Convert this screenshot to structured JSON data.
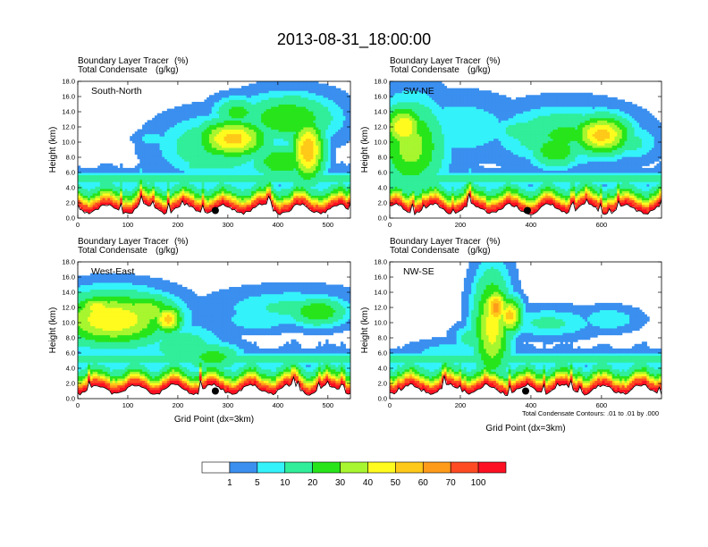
{
  "figure": {
    "title": "2013-08-31_18:00:00",
    "colors": {
      "background": "#ffffff",
      "terrain": "#c00018",
      "contour": "#000000",
      "point": "#000000"
    }
  },
  "chart_data": [
    {
      "type": "heatmap",
      "panel": "South-North",
      "label": "South-North",
      "header_left_1": "Boundary Layer Tracer",
      "header_right_1": "(%)",
      "header_left_2": "Total Condensate",
      "header_right_2": "(g/kg)",
      "ylabel": "Height (km)",
      "xlabel": "",
      "xlim": [
        0,
        545
      ],
      "ylim": [
        0,
        18
      ],
      "xticks": [
        0,
        100,
        200,
        300,
        400,
        500
      ],
      "yticks": [
        "0.0",
        "2.0",
        "4.0",
        "6.0",
        "8.0",
        "10.0",
        "12.0",
        "14.0",
        "16.0",
        "18.0"
      ],
      "marker_x": 275,
      "marker_y": 1.0,
      "cloud_blobs": [
        {
          "x": 150,
          "y": 10.5,
          "rx": 30,
          "ry": 0.9,
          "peak": 8
        },
        {
          "x": 280,
          "y": 9.5,
          "rx": 90,
          "ry": 3.2,
          "peak": 22
        },
        {
          "x": 310,
          "y": 10.5,
          "rx": 60,
          "ry": 2.2,
          "peak": 55
        },
        {
          "x": 320,
          "y": 14.0,
          "rx": 40,
          "ry": 1.6,
          "peak": 25
        },
        {
          "x": 420,
          "y": 13.2,
          "rx": 80,
          "ry": 2.6,
          "peak": 30
        },
        {
          "x": 440,
          "y": 15.5,
          "rx": 18,
          "ry": 1.0,
          "peak": 15
        },
        {
          "x": 460,
          "y": 9.0,
          "rx": 28,
          "ry": 3.5,
          "peak": 60
        },
        {
          "x": 410,
          "y": 7.5,
          "rx": 55,
          "ry": 2.0,
          "peak": 30
        },
        {
          "x": 240,
          "y": 7.0,
          "rx": 40,
          "ry": 1.2,
          "peak": 12
        }
      ],
      "terrain_seed": 3
    },
    {
      "type": "heatmap",
      "panel": "SW-NE",
      "label": "SW-NE",
      "header_left_1": "Boundary Layer Tracer",
      "header_right_1": "(%)",
      "header_left_2": "Total Condensate",
      "header_right_2": "(g/kg)",
      "ylabel": "Height (km)",
      "xlabel": "",
      "xlim": [
        0,
        770
      ],
      "ylim": [
        0,
        18
      ],
      "xticks": [
        0,
        200,
        400,
        600
      ],
      "yticks": [
        "0.0",
        "2.0",
        "4.0",
        "6.0",
        "8.0",
        "10.0",
        "12.0",
        "14.0",
        "16.0",
        "18.0"
      ],
      "marker_x": 390,
      "marker_y": 1.0,
      "cloud_blobs": [
        {
          "x": 60,
          "y": 9.5,
          "rx": 80,
          "ry": 5.0,
          "peak": 35
        },
        {
          "x": 40,
          "y": 12.0,
          "rx": 50,
          "ry": 2.5,
          "peak": 50
        },
        {
          "x": 200,
          "y": 12.0,
          "rx": 130,
          "ry": 3.2,
          "peak": 10
        },
        {
          "x": 380,
          "y": 11.5,
          "rx": 80,
          "ry": 1.6,
          "peak": 15
        },
        {
          "x": 500,
          "y": 11.0,
          "rx": 150,
          "ry": 3.0,
          "peak": 22
        },
        {
          "x": 600,
          "y": 11.0,
          "rx": 70,
          "ry": 2.2,
          "peak": 55
        },
        {
          "x": 470,
          "y": 9.0,
          "rx": 60,
          "ry": 2.0,
          "peak": 30
        },
        {
          "x": 690,
          "y": 10.0,
          "rx": 60,
          "ry": 2.0,
          "peak": 12
        }
      ],
      "terrain_seed": 7
    },
    {
      "type": "heatmap",
      "panel": "West-East",
      "label": "West-East",
      "header_left_1": "Boundary Layer Tracer",
      "header_right_1": "(%)",
      "header_left_2": "Total Condensate",
      "header_right_2": "(g/kg)",
      "ylabel": "Height (km)",
      "xlabel": "Grid Point (dx=3km)",
      "xlim": [
        0,
        545
      ],
      "ylim": [
        0,
        18
      ],
      "xticks": [
        0,
        100,
        200,
        300,
        400,
        500
      ],
      "yticks": [
        "0.0",
        "2.0",
        "4.0",
        "6.0",
        "8.0",
        "10.0",
        "12.0",
        "14.0",
        "16.0",
        "18.0"
      ],
      "marker_x": 275,
      "marker_y": 1.0,
      "cloud_blobs": [
        {
          "x": 70,
          "y": 10.5,
          "rx": 100,
          "ry": 3.0,
          "peak": 50
        },
        {
          "x": 130,
          "y": 11.5,
          "rx": 60,
          "ry": 2.0,
          "peak": 40
        },
        {
          "x": 180,
          "y": 10.5,
          "rx": 25,
          "ry": 1.6,
          "peak": 55
        },
        {
          "x": 40,
          "y": 12.0,
          "rx": 40,
          "ry": 1.5,
          "peak": 45
        },
        {
          "x": 210,
          "y": 7.0,
          "rx": 70,
          "ry": 2.5,
          "peak": 15
        },
        {
          "x": 270,
          "y": 5.5,
          "rx": 50,
          "ry": 1.6,
          "peak": 25
        },
        {
          "x": 430,
          "y": 12.0,
          "rx": 120,
          "ry": 2.0,
          "peak": 12
        },
        {
          "x": 480,
          "y": 11.5,
          "rx": 50,
          "ry": 1.6,
          "peak": 30
        },
        {
          "x": 360,
          "y": 10.5,
          "rx": 60,
          "ry": 1.4,
          "peak": 10
        }
      ],
      "terrain_seed": 11
    },
    {
      "type": "heatmap",
      "panel": "NW-SE",
      "label": "NW-SE",
      "header_left_1": "Boundary Layer Tracer",
      "header_right_1": "(%)",
      "header_left_2": "Total Condensate",
      "header_right_2": "(g/kg)",
      "ylabel": "Height (km)",
      "xlabel": "Grid Point (dx=3km)",
      "xlim": [
        0,
        770
      ],
      "ylim": [
        0,
        18
      ],
      "xticks": [
        0,
        200,
        400,
        600
      ],
      "yticks": [
        "0.0",
        "2.0",
        "4.0",
        "6.0",
        "8.0",
        "10.0",
        "12.0",
        "14.0",
        "16.0",
        "18.0"
      ],
      "marker_x": 385,
      "marker_y": 1.0,
      "cloud_blobs": [
        {
          "x": 290,
          "y": 9.5,
          "rx": 45,
          "ry": 6.0,
          "peak": 45
        },
        {
          "x": 300,
          "y": 12.0,
          "rx": 30,
          "ry": 2.2,
          "peak": 65
        },
        {
          "x": 340,
          "y": 11.0,
          "rx": 30,
          "ry": 2.0,
          "peak": 55
        },
        {
          "x": 270,
          "y": 15.0,
          "rx": 25,
          "ry": 1.4,
          "peak": 20
        },
        {
          "x": 450,
          "y": 10.0,
          "rx": 110,
          "ry": 1.6,
          "peak": 12
        },
        {
          "x": 620,
          "y": 10.5,
          "rx": 70,
          "ry": 1.3,
          "peak": 10
        },
        {
          "x": 170,
          "y": 6.0,
          "rx": 90,
          "ry": 1.3,
          "peak": 10
        },
        {
          "x": 230,
          "y": 8.0,
          "rx": 40,
          "ry": 1.5,
          "peak": 15
        }
      ],
      "terrain_seed": 17
    }
  ],
  "colorbar": {
    "ticks": [
      "1",
      "5",
      "10",
      "20",
      "30",
      "40",
      "50",
      "60",
      "70",
      "100"
    ],
    "colors": [
      "#ffffff",
      "#3a8fef",
      "#34f2f9",
      "#30ee99",
      "#27e51a",
      "#a7f62f",
      "#fffb1f",
      "#ffc919",
      "#ff9b1a",
      "#fe4b23",
      "#fd1022"
    ]
  },
  "footnote": "Total Condensate Contours: .01 to .01 by .000"
}
